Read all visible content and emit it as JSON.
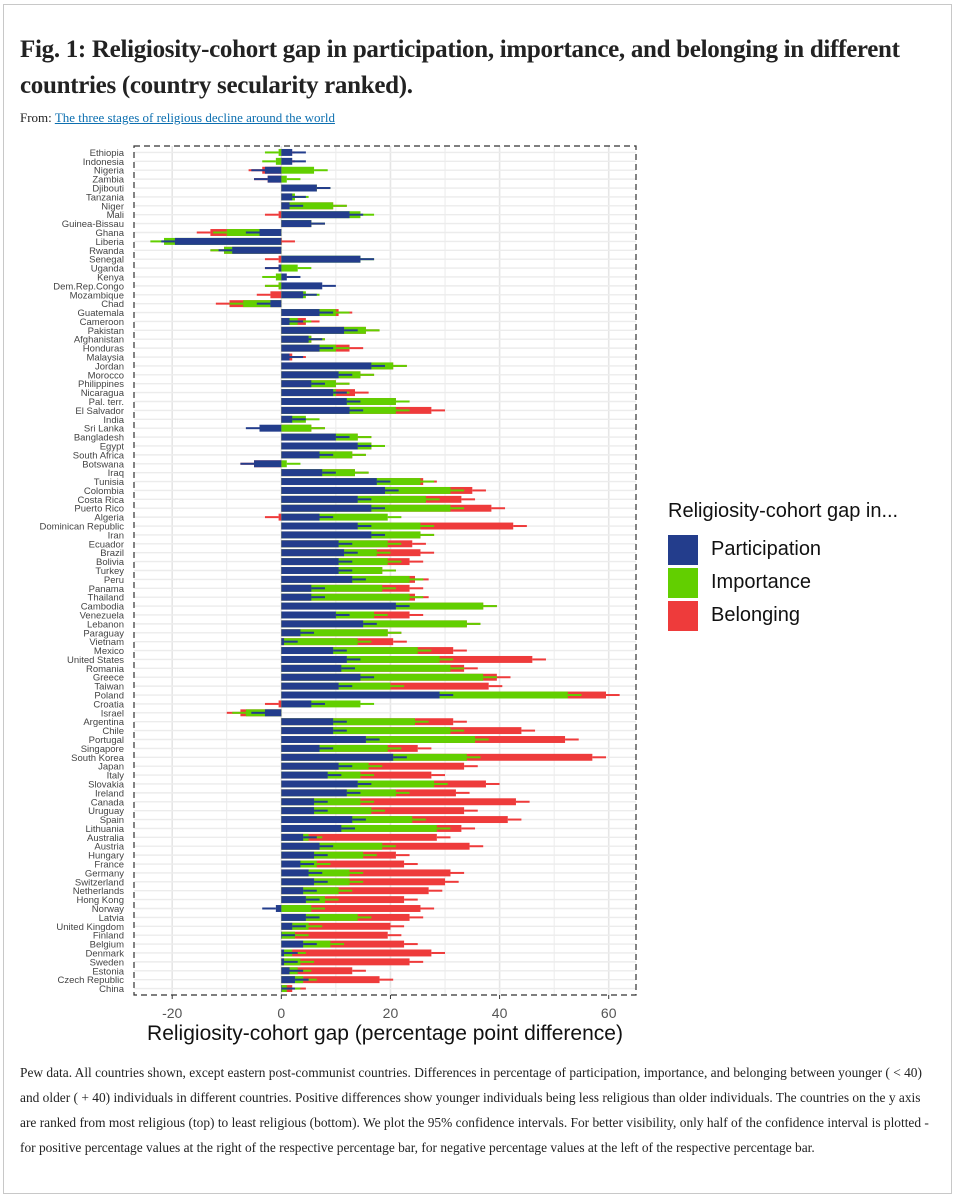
{
  "figure": {
    "title": "Fig. 1: Religiosity-cohort gap in participation, importance, and belonging in different countries (country secularity ranked).",
    "from_label": "From:",
    "source_link": "The three stages of religious decline around the world",
    "caption": "Pew data. All countries shown, except eastern post-communist countries. Differences in percentage of participation, importance, and belonging between younger ( < 40) and older ( + 40) individuals in different countries. Positive differences show younger individuals being less religious than older individuals. The countries on the y axis are ranked from most religious (top) to least religious (bottom). We plot the 95% confidence intervals. For better visibility, only half of the confidence interval is plotted - for positive percentage values at the right of the respective percentage bar, for negative percentage values at the left of the respective percentage bar."
  },
  "colors": {
    "participation": "#233d8c",
    "importance": "#62cf00",
    "belonging": "#ee3b3b"
  },
  "chart_data": {
    "type": "bar",
    "orientation": "horizontal",
    "stacked": true,
    "title": "",
    "xlabel": "Religiosity-cohort gap (percentage point difference)",
    "ylabel": "",
    "xlim": [
      -27,
      65
    ],
    "xticks": [
      -20,
      0,
      20,
      40,
      60
    ],
    "grid": true,
    "legend": {
      "title": "Religiosity-cohort gap in...",
      "position": "right",
      "entries": [
        "Participation",
        "Importance",
        "Belonging"
      ]
    },
    "note": "Values are the displayed bar end positions (data units) for each stacked segment: participation segment end, importance segment end, belonging segment end.",
    "categories": [
      "Ethiopia",
      "Indonesia",
      "Nigeria",
      "Zambia",
      "Djibouti",
      "Tanzania",
      "Niger",
      "Mali",
      "Guinea-Bissau",
      "Ghana",
      "Liberia",
      "Rwanda",
      "Senegal",
      "Uganda",
      "Kenya",
      "Dem.Rep.Congo",
      "Mozambique",
      "Chad",
      "Guatemala",
      "Cameroon",
      "Pakistan",
      "Afghanistan",
      "Honduras",
      "Malaysia",
      "Jordan",
      "Morocco",
      "Philippines",
      "Nicaragua",
      "Pal. terr.",
      "El Salvador",
      "India",
      "Sri Lanka",
      "Bangladesh",
      "Egypt",
      "South Africa",
      "Botswana",
      "Iraq",
      "Tunisia",
      "Colombia",
      "Costa Rica",
      "Puerto Rico",
      "Algeria",
      "Dominican Republic",
      "Iran",
      "Ecuador",
      "Brazil",
      "Bolivia",
      "Turkey",
      "Peru",
      "Panama",
      "Thailand",
      "Cambodia",
      "Venezuela",
      "Lebanon",
      "Paraguay",
      "Vietnam",
      "Mexico",
      "United States",
      "Romania",
      "Greece",
      "Taiwan",
      "Poland",
      "Croatia",
      "Israel",
      "Argentina",
      "Chile",
      "Portugal",
      "Singapore",
      "South Korea",
      "Japan",
      "Italy",
      "Slovakia",
      "Ireland",
      "Canada",
      "Uruguay",
      "Spain",
      "Lithuania",
      "Australia",
      "Austria",
      "Hungary",
      "France",
      "Germany",
      "Switzerland",
      "Netherlands",
      "Hong Kong",
      "Norway",
      "Latvia",
      "United Kingdom",
      "Finland",
      "Belgium",
      "Denmark",
      "Sweden",
      "Estonia",
      "Czech Republic",
      "China"
    ],
    "series": [
      {
        "name": "Participation",
        "values": [
          2,
          2,
          -3,
          -2.5,
          6.5,
          2,
          1.5,
          12.5,
          5.5,
          -4,
          -19.5,
          -9,
          14.5,
          -0.5,
          1,
          7.5,
          4,
          -2,
          7,
          1.5,
          11.5,
          5,
          7,
          1.5,
          16.5,
          10.5,
          5.5,
          9.5,
          12,
          12.5,
          2,
          -4,
          10,
          14,
          7,
          -5,
          7.5,
          17.5,
          19,
          14,
          16.5,
          7,
          14,
          16.5,
          10.5,
          11.5,
          10.5,
          10.5,
          13,
          5.5,
          5.5,
          21,
          10,
          15,
          3.5,
          0.5,
          9.5,
          12,
          11,
          14.5,
          10.5,
          29,
          5.5,
          -3,
          9.5,
          9.5,
          15.5,
          7,
          20.5,
          10.5,
          8.5,
          14,
          12,
          6,
          6,
          13,
          11,
          4,
          7,
          6,
          3.5,
          5,
          6,
          4,
          4.5,
          -1,
          4.5,
          2,
          0,
          4,
          0.5,
          0.5,
          1.5,
          2.5,
          0
        ]
      },
      {
        "name": "Importance",
        "values": [
          -0.5,
          -1,
          6,
          1,
          6.5,
          2.5,
          9.5,
          14.5,
          5.5,
          -10,
          -21.5,
          -10.5,
          14.5,
          3,
          -1,
          -0.5,
          4.5,
          -7,
          10,
          3,
          15.5,
          5.5,
          10,
          1,
          20.5,
          14.5,
          10,
          10,
          21,
          21,
          4.5,
          5.5,
          14,
          16.5,
          13,
          1,
          13.5,
          25.5,
          31,
          26.5,
          31,
          19.5,
          25.5,
          25.5,
          19.5,
          17.5,
          19.5,
          18.5,
          23.5,
          18.5,
          23.5,
          37,
          17,
          34,
          19.5,
          14,
          25,
          29,
          31,
          37,
          20,
          52.5,
          14.5,
          -6.5,
          24.5,
          31,
          35.5,
          19.5,
          34,
          16,
          14.5,
          28,
          21,
          14.5,
          16.5,
          24,
          28.5,
          5,
          18.5,
          15,
          6.5,
          12.5,
          12.5,
          10.5,
          8,
          5.5,
          14,
          5,
          2.5,
          9,
          2,
          3.5,
          3,
          4,
          1
        ]
      },
      {
        "name": "Belonging",
        "values": [
          0,
          0,
          -3.5,
          -2.5,
          6.5,
          2,
          9.5,
          -0.5,
          5.5,
          -13,
          0,
          -10.5,
          -0.5,
          -0.5,
          0.5,
          -0.5,
          -2,
          -9.5,
          10.5,
          4.5,
          15.5,
          5.5,
          12.5,
          2,
          20.5,
          14.5,
          10,
          13.5,
          21,
          27.5,
          0,
          5.5,
          14,
          16.5,
          13,
          -5,
          13.5,
          26,
          35,
          33,
          38.5,
          -0.5,
          42.5,
          25.5,
          24,
          25.5,
          23.5,
          18.5,
          24.5,
          23.5,
          24.5,
          37,
          23.5,
          34,
          19.5,
          20.5,
          31.5,
          46,
          33.5,
          39.5,
          38,
          59.5,
          -0.5,
          -7.5,
          31.5,
          44,
          52,
          25,
          57,
          33.5,
          27.5,
          37.5,
          32,
          43,
          33.5,
          41.5,
          33,
          28.5,
          34.5,
          21,
          22.5,
          31,
          30,
          27,
          22.5,
          25.5,
          23.5,
          20,
          19.5,
          22.5,
          27.5,
          23.5,
          13,
          18,
          2
        ]
      }
    ]
  }
}
